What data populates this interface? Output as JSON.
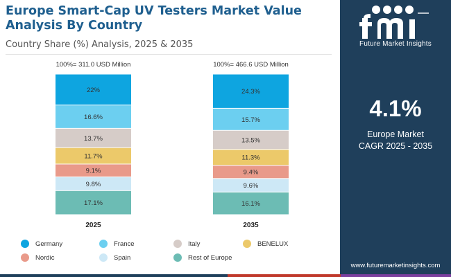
{
  "header": {
    "title": "Europe Smart-Cap UV Testers Market Value Analysis By Country",
    "subtitle": "Country Share (%) Analysis, 2025 & 2035"
  },
  "side_panel": {
    "brand": "Future Market Insights",
    "cagr_value": "4.1%",
    "cagr_label_line1": "Europe Market",
    "cagr_label_line2": "CAGR 2025 - 2035",
    "website": "www.futuremarketinsights.com"
  },
  "colors": {
    "Germany": "#0ea5e0",
    "France": "#6ccff0",
    "Italy": "#d6ccc8",
    "BENELUX": "#ecc96a",
    "Nordic": "#e99a8a",
    "Spain": "#cde8f6",
    "Rest of Europe": "#6cbcb4",
    "panel": "#1f3f5b",
    "bottom_bar": [
      "#1f3f5b",
      "#c0392b",
      "#7b3f9e"
    ]
  },
  "chart_data": {
    "type": "bar",
    "stacked": true,
    "normalized_to_percent": true,
    "categories": [
      "2025",
      "2035"
    ],
    "totals": [
      "100%= 311.0 USD Million",
      "100%= 466.6 USD Million"
    ],
    "series": [
      {
        "name": "Germany",
        "values": [
          22,
          24.3
        ],
        "labels": [
          "22%",
          "24.3%"
        ]
      },
      {
        "name": "France",
        "values": [
          16.6,
          15.7
        ],
        "labels": [
          "16.6%",
          "15.7%"
        ]
      },
      {
        "name": "Italy",
        "values": [
          13.7,
          13.5
        ],
        "labels": [
          "13.7%",
          "13.5%"
        ]
      },
      {
        "name": "BENELUX",
        "values": [
          11.7,
          11.3
        ],
        "labels": [
          "11.7%",
          "11.3%"
        ]
      },
      {
        "name": "Nordic",
        "values": [
          9.1,
          9.4
        ],
        "labels": [
          "9.1%",
          "9.4%"
        ]
      },
      {
        "name": "Spain",
        "values": [
          9.8,
          9.6
        ],
        "labels": [
          "9.8%",
          "9.6%"
        ]
      },
      {
        "name": "Rest of Europe",
        "values": [
          17.1,
          16.1
        ],
        "labels": [
          "17.1%",
          "16.1%"
        ]
      }
    ],
    "legend_position": "bottom"
  }
}
